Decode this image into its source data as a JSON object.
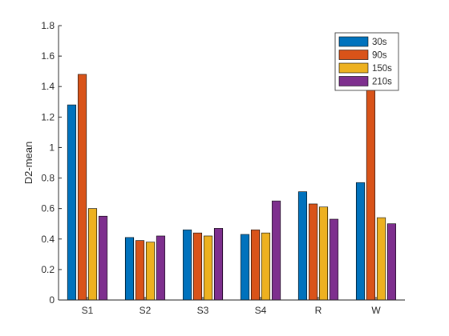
{
  "chart_data": {
    "type": "bar",
    "title": "",
    "xlabel": "",
    "ylabel": "D2-mean",
    "ylim": [
      0,
      1.8
    ],
    "yticks": [
      0,
      0.2,
      0.4,
      0.6,
      0.8,
      1,
      1.2,
      1.4,
      1.6,
      1.8
    ],
    "ytick_labels": [
      "0",
      "0.2",
      "0.4",
      "0.6",
      "0.8",
      "1",
      "1.2",
      "1.4",
      "1.6",
      "1.8"
    ],
    "categories": [
      "S1",
      "S2",
      "S3",
      "S4",
      "R",
      "W"
    ],
    "grid": false,
    "legend_position": "top-right",
    "series": [
      {
        "name": "30s",
        "color": "#0072BD",
        "values": [
          1.28,
          0.41,
          0.46,
          0.43,
          0.71,
          0.77
        ]
      },
      {
        "name": "90s",
        "color": "#D95319",
        "values": [
          1.48,
          0.39,
          0.44,
          0.46,
          0.63,
          1.45
        ]
      },
      {
        "name": "150s",
        "color": "#EDB120",
        "values": [
          0.6,
          0.38,
          0.42,
          0.44,
          0.61,
          0.54
        ]
      },
      {
        "name": "210s",
        "color": "#7E2F8E",
        "values": [
          0.55,
          0.42,
          0.47,
          0.65,
          0.53,
          0.5
        ]
      }
    ]
  }
}
